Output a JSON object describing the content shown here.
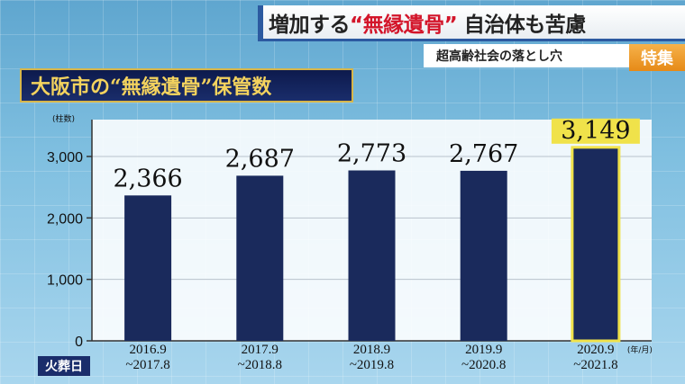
{
  "headline": {
    "part1": "増加する",
    "part2": "“無縁遺骨”",
    "part3": " 自治体も苦慮"
  },
  "subheadline": "超高齢社会の落とし穴",
  "badge": "特集",
  "chart_title_text": "大阪市の“無縁遺骨”保管数",
  "row_label": "火葬日",
  "chart_data": {
    "type": "bar",
    "title": "大阪市の“無縁遺骨”保管数",
    "ylabel": "(柱数)",
    "x_unit": "(年/月)",
    "categories": [
      [
        "2016.9",
        "~2017.8"
      ],
      [
        "2017.9",
        "~2018.8"
      ],
      [
        "2018.9",
        "~2019.8"
      ],
      [
        "2019.9",
        "~2020.8"
      ],
      [
        "2020.9",
        "~2021.8"
      ]
    ],
    "values": [
      2366,
      2687,
      2773,
      2767,
      3149
    ],
    "value_labels": [
      "2,366",
      "2,687",
      "2,773",
      "2,767",
      "3,149"
    ],
    "highlight_index": 4,
    "ylim": [
      0,
      3600
    ],
    "yticks": [
      0,
      1000,
      2000,
      3000
    ],
    "ytick_labels": [
      "0",
      "1,000",
      "2,000",
      "3,000"
    ],
    "colors": {
      "bar": "#1a2a5c",
      "highlight_border": "#f0e24a",
      "grid": "#b9c2cc"
    }
  }
}
